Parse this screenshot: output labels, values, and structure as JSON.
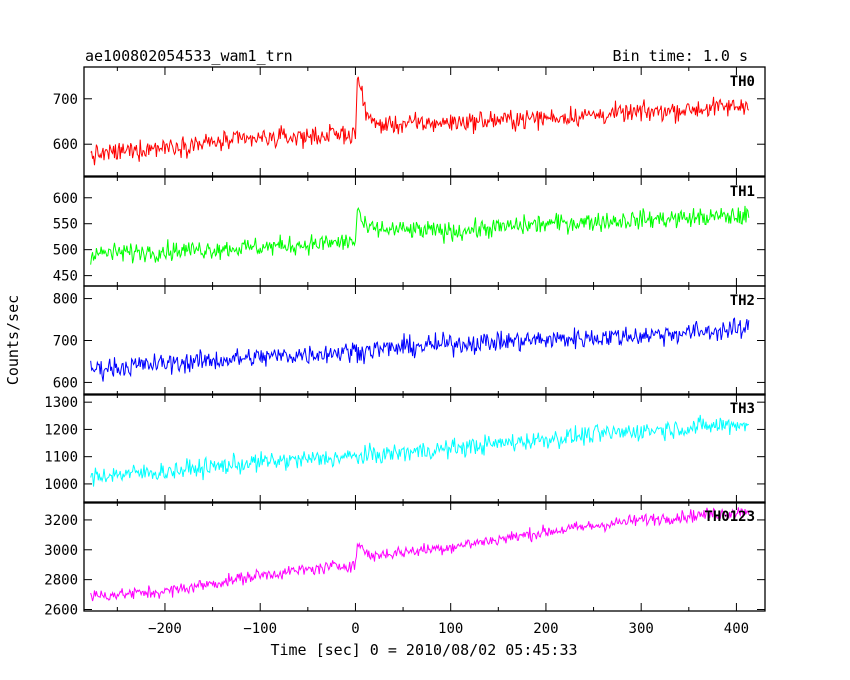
{
  "header": {
    "title": "ae100802054533_wam1_trn",
    "bin_time": "Bin time: 1.0 s"
  },
  "ylabel": "Counts/sec",
  "xlabel": "Time [sec] 0 = 2010/08/02 05:45:33",
  "chart_data": {
    "type": "line",
    "x_range": [
      -285,
      430
    ],
    "x_ticks": [
      -200,
      -100,
      0,
      100,
      200,
      300,
      400
    ],
    "x_tick_labels": [
      "−200",
      "−100",
      "0",
      "100",
      "200",
      "300",
      "400"
    ],
    "x_sample_start": -278,
    "x_sample_end": 413,
    "x_step": 1,
    "panels": [
      {
        "name": "TH0",
        "color": "#ff0000",
        "ylim": [
          530,
          770
        ],
        "y_ticks": [
          600,
          700
        ],
        "y_tick_labels": [
          "600",
          "700"
        ],
        "points": [
          [
            -278,
            575
          ],
          [
            -200,
            595
          ],
          [
            -100,
            612
          ],
          [
            -10,
            622
          ],
          [
            0,
            622
          ],
          [
            2,
            752
          ],
          [
            8,
            690
          ],
          [
            20,
            642
          ],
          [
            100,
            648
          ],
          [
            200,
            658
          ],
          [
            300,
            670
          ],
          [
            413,
            685
          ]
        ],
        "noise": 28
      },
      {
        "name": "TH1",
        "color": "#00ff00",
        "ylim": [
          430,
          640
        ],
        "y_ticks": [
          450,
          500,
          550,
          600
        ],
        "y_tick_labels": [
          "450",
          "500",
          "550",
          "600"
        ],
        "points": [
          [
            -278,
            492
          ],
          [
            -100,
            505
          ],
          [
            -5,
            515
          ],
          [
            0,
            515
          ],
          [
            2,
            580
          ],
          [
            10,
            540
          ],
          [
            100,
            535
          ],
          [
            200,
            550
          ],
          [
            300,
            558
          ],
          [
            413,
            565
          ]
        ],
        "noise": 24
      },
      {
        "name": "TH2",
        "color": "#0000ff",
        "ylim": [
          570,
          830
        ],
        "y_ticks": [
          600,
          700,
          800
        ],
        "y_tick_labels": [
          "600",
          "700",
          "800"
        ],
        "points": [
          [
            -278,
            632
          ],
          [
            -200,
            645
          ],
          [
            -100,
            660
          ],
          [
            0,
            675
          ],
          [
            100,
            692
          ],
          [
            200,
            702
          ],
          [
            300,
            712
          ],
          [
            413,
            728
          ]
        ],
        "noise": 32
      },
      {
        "name": "TH3",
        "color": "#00ffff",
        "ylim": [
          930,
          1330
        ],
        "y_ticks": [
          1000,
          1100,
          1200,
          1300
        ],
        "y_tick_labels": [
          "1000",
          "1100",
          "1200",
          "1300"
        ],
        "points": [
          [
            -278,
            1030
          ],
          [
            -200,
            1045
          ],
          [
            -100,
            1080
          ],
          [
            0,
            1100
          ],
          [
            100,
            1130
          ],
          [
            200,
            1165
          ],
          [
            300,
            1195
          ],
          [
            413,
            1222
          ]
        ],
        "noise": 45
      },
      {
        "name": "TH0123",
        "color": "#ff00ff",
        "ylim": [
          2590,
          3320
        ],
        "y_ticks": [
          2600,
          2800,
          3000,
          3200
        ],
        "y_tick_labels": [
          "2600",
          "2800",
          "3000",
          "3200"
        ],
        "points": [
          [
            -278,
            2690
          ],
          [
            -200,
            2720
          ],
          [
            -100,
            2830
          ],
          [
            -5,
            2900
          ],
          [
            0,
            2900
          ],
          [
            2,
            3040
          ],
          [
            15,
            2960
          ],
          [
            100,
            3020
          ],
          [
            200,
            3120
          ],
          [
            300,
            3200
          ],
          [
            413,
            3260
          ]
        ],
        "noise": 55
      }
    ]
  }
}
